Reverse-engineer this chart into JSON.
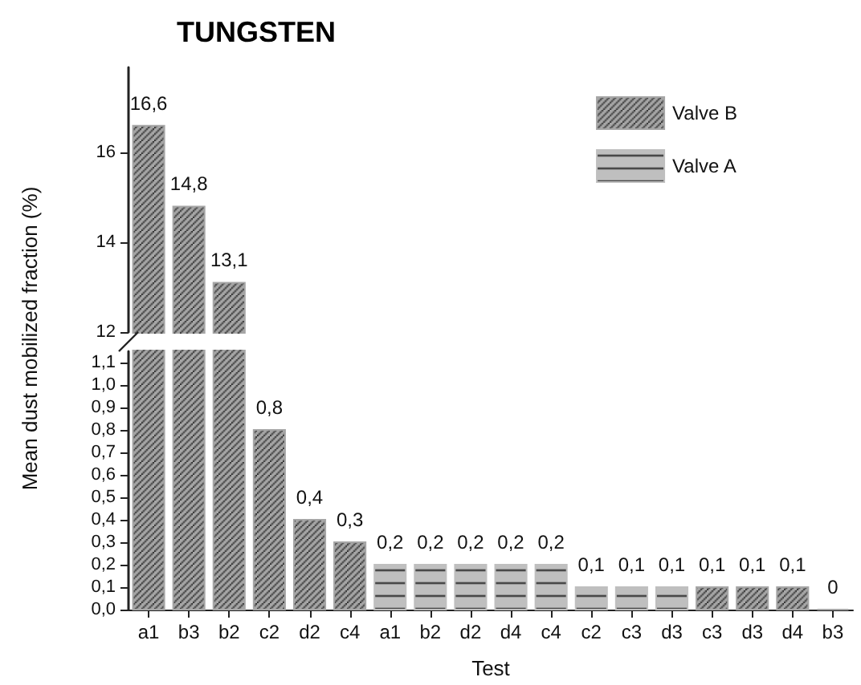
{
  "chart_data": [
    {
      "type": "bar",
      "title": "TUNGSTEN",
      "ylabel": "Mean dust mobilized fraction (%)",
      "categories": [
        null,
        null,
        null
      ],
      "series": [
        {
          "color": "#a6a6a6",
          "values": [
            16.6,
            14.8,
            13.1
          ],
          "value_labels": [
            "16,6",
            "14,8",
            "13,1"
          ]
        }
      ],
      "ylim": [
        12,
        17.9
      ],
      "yticks": [
        12,
        14,
        16
      ],
      "tick_labels": "y",
      "grid": false
    },
    {
      "type": "bar",
      "xlabel": "Test",
      "categories": [
        "a1",
        "b3",
        "b2",
        "c2",
        "d2",
        "c4",
        "a1",
        "b2",
        "d2",
        "d4",
        "c4",
        "c2",
        "c3",
        "d3",
        "c3",
        "d3",
        "d4",
        "b3"
      ],
      "series": [
        {
          "name": "Valve B",
          "color": "#a6a6a6",
          "values": [
            null,
            null,
            null,
            0.8,
            0.4,
            0.3,
            null,
            null,
            null,
            null,
            null,
            null,
            null,
            null,
            0.1,
            0.1,
            0.1,
            0
          ],
          "value_labels": [
            null,
            null,
            null,
            "0,8",
            "0,4",
            "0,3",
            null,
            null,
            null,
            null,
            null,
            null,
            null,
            null,
            "0,1",
            "0,1",
            "0,1",
            "0"
          ]
        },
        {
          "name": "Valve A",
          "color": "#bfbfbf",
          "values": [
            null,
            null,
            null,
            null,
            null,
            null,
            0.2,
            0.2,
            0.2,
            0.2,
            0.2,
            0.1,
            0.1,
            0.1,
            null,
            null,
            null,
            null
          ],
          "value_labels": [
            null,
            null,
            null,
            null,
            null,
            null,
            "0,2",
            "0,2",
            "0,2",
            "0,2",
            "0,2",
            "0,1",
            "0,1",
            "0,1",
            null,
            null,
            null,
            null
          ]
        }
      ],
      "ylim": [
        0,
        1.15
      ],
      "yticks": [
        {
          "value": 0,
          "label": "0,0"
        },
        {
          "value": 0.1,
          "label": "0,1"
        },
        {
          "value": 0.2,
          "label": "0,2"
        },
        {
          "value": 0.3,
          "label": "0,3"
        },
        {
          "value": 0.4,
          "label": "0,4"
        },
        {
          "value": 0.5,
          "label": "0,5"
        },
        {
          "value": 0.6,
          "label": "0,6"
        },
        {
          "value": 0.7,
          "label": "0,7"
        },
        {
          "value": 0.8,
          "label": "0,8"
        },
        {
          "value": 0.9,
          "label": "0,9"
        },
        {
          "value": 1.0,
          "label": "1,0"
        },
        {
          "value": 1.1,
          "label": "1,1"
        }
      ],
      "legend": "top right",
      "grid": false
    }
  ]
}
